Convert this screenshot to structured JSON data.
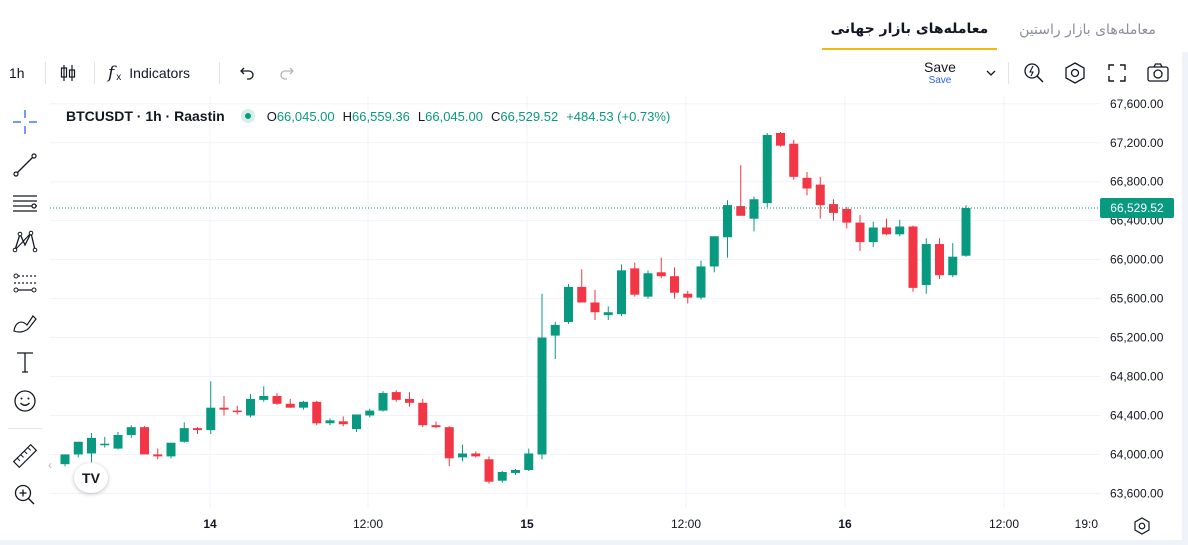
{
  "tabs": [
    {
      "label": "معامله‌های بازار جهانی",
      "active": true
    },
    {
      "label": "معامله‌های بازار راستین",
      "active": false
    }
  ],
  "toolbar": {
    "interval": "1h",
    "indicators_label": "Indicators",
    "save_label": "Save",
    "save_sub": "Save"
  },
  "legend": {
    "symbol": "BTCUSDT · 1h · Raastin",
    "open_key": "O",
    "open": "66,045.00",
    "high_key": "H",
    "high": "66,559.36",
    "low_key": "L",
    "low": "66,045.00",
    "close_key": "C",
    "close": "66,529.52",
    "change": "+484.53 (+0.73%)"
  },
  "logo_text": "TV",
  "price_axis": {
    "ticks": [
      67600,
      67200,
      66800,
      66400,
      66000,
      65600,
      65200,
      64800,
      64400,
      64000,
      63600
    ],
    "tick_labels": [
      "67,600.00",
      "67,200.00",
      "66,800.00",
      "66,400.00",
      "66,000.00",
      "65,600.00",
      "65,200.00",
      "64,800.00",
      "64,400.00",
      "64,000.00",
      "63,600.00"
    ],
    "last_price": 66529.52,
    "last_price_label": "66,529.52"
  },
  "time_axis": {
    "labels": [
      "14",
      "12:00",
      "15",
      "12:00",
      "16",
      "12:00",
      "19:0"
    ]
  },
  "colors": {
    "up": "#089981",
    "down": "#f23645",
    "accent": "#f0b90b"
  },
  "chart_data": {
    "type": "candlestick",
    "x_unit": "hour",
    "ylim": [
      63450,
      67680
    ],
    "candles": [
      {
        "o": 63900,
        "h": 64000,
        "l": 63880,
        "c": 64000
      },
      {
        "o": 64000,
        "h": 64130,
        "l": 63970,
        "c": 64130
      },
      {
        "o": 64010,
        "h": 64220,
        "l": 63920,
        "c": 64170
      },
      {
        "o": 64100,
        "h": 64180,
        "l": 64070,
        "c": 64110
      },
      {
        "o": 64060,
        "h": 64230,
        "l": 64050,
        "c": 64200
      },
      {
        "o": 64200,
        "h": 64300,
        "l": 64170,
        "c": 64280
      },
      {
        "o": 64280,
        "h": 64290,
        "l": 64000,
        "c": 64000
      },
      {
        "o": 64000,
        "h": 64060,
        "l": 63950,
        "c": 63980
      },
      {
        "o": 63980,
        "h": 64120,
        "l": 63960,
        "c": 64120
      },
      {
        "o": 64130,
        "h": 64330,
        "l": 64120,
        "c": 64270
      },
      {
        "o": 64270,
        "h": 64280,
        "l": 64210,
        "c": 64250
      },
      {
        "o": 64250,
        "h": 64750,
        "l": 64210,
        "c": 64480
      },
      {
        "o": 64480,
        "h": 64600,
        "l": 64400,
        "c": 64460
      },
      {
        "o": 64450,
        "h": 64500,
        "l": 64410,
        "c": 64440
      },
      {
        "o": 64400,
        "h": 64620,
        "l": 64380,
        "c": 64570
      },
      {
        "o": 64560,
        "h": 64700,
        "l": 64540,
        "c": 64600
      },
      {
        "o": 64600,
        "h": 64630,
        "l": 64510,
        "c": 64520
      },
      {
        "o": 64520,
        "h": 64570,
        "l": 64480,
        "c": 64480
      },
      {
        "o": 64480,
        "h": 64550,
        "l": 64460,
        "c": 64540
      },
      {
        "o": 64540,
        "h": 64550,
        "l": 64300,
        "c": 64320
      },
      {
        "o": 64320,
        "h": 64370,
        "l": 64300,
        "c": 64350
      },
      {
        "o": 64340,
        "h": 64390,
        "l": 64290,
        "c": 64310
      },
      {
        "o": 64260,
        "h": 64390,
        "l": 64230,
        "c": 64410
      },
      {
        "o": 64400,
        "h": 64470,
        "l": 64380,
        "c": 64450
      },
      {
        "o": 64450,
        "h": 64650,
        "l": 64440,
        "c": 64630
      },
      {
        "o": 64640,
        "h": 64660,
        "l": 64540,
        "c": 64560
      },
      {
        "o": 64570,
        "h": 64640,
        "l": 64490,
        "c": 64530
      },
      {
        "o": 64530,
        "h": 64570,
        "l": 64280,
        "c": 64300
      },
      {
        "o": 64300,
        "h": 64340,
        "l": 64270,
        "c": 64280
      },
      {
        "o": 64280,
        "h": 64290,
        "l": 63880,
        "c": 63960
      },
      {
        "o": 63970,
        "h": 64100,
        "l": 63930,
        "c": 64010
      },
      {
        "o": 64010,
        "h": 64030,
        "l": 63970,
        "c": 63980
      },
      {
        "o": 63950,
        "h": 63980,
        "l": 63700,
        "c": 63720
      },
      {
        "o": 63730,
        "h": 63830,
        "l": 63710,
        "c": 63820
      },
      {
        "o": 63810,
        "h": 63850,
        "l": 63790,
        "c": 63840
      },
      {
        "o": 63840,
        "h": 64060,
        "l": 63830,
        "c": 64010
      },
      {
        "o": 64000,
        "h": 65650,
        "l": 63950,
        "c": 65200
      },
      {
        "o": 65220,
        "h": 65360,
        "l": 64980,
        "c": 65330
      },
      {
        "o": 65360,
        "h": 65750,
        "l": 65340,
        "c": 65720
      },
      {
        "o": 65720,
        "h": 65900,
        "l": 65570,
        "c": 65560
      },
      {
        "o": 65560,
        "h": 65690,
        "l": 65380,
        "c": 65460
      },
      {
        "o": 65430,
        "h": 65520,
        "l": 65380,
        "c": 65460
      },
      {
        "o": 65440,
        "h": 65950,
        "l": 65420,
        "c": 65890
      },
      {
        "o": 65910,
        "h": 65970,
        "l": 65620,
        "c": 65640
      },
      {
        "o": 65620,
        "h": 65890,
        "l": 65600,
        "c": 65860
      },
      {
        "o": 65870,
        "h": 66020,
        "l": 65810,
        "c": 65830
      },
      {
        "o": 65830,
        "h": 65920,
        "l": 65600,
        "c": 65660
      },
      {
        "o": 65650,
        "h": 65680,
        "l": 65550,
        "c": 65610
      },
      {
        "o": 65610,
        "h": 65990,
        "l": 65590,
        "c": 65930
      },
      {
        "o": 65930,
        "h": 66200,
        "l": 65870,
        "c": 66240
      },
      {
        "o": 66230,
        "h": 66610,
        "l": 66020,
        "c": 66560
      },
      {
        "o": 66550,
        "h": 66970,
        "l": 66460,
        "c": 66450
      },
      {
        "o": 66420,
        "h": 66650,
        "l": 66290,
        "c": 66620
      },
      {
        "o": 66580,
        "h": 67300,
        "l": 66540,
        "c": 67280
      },
      {
        "o": 67300,
        "h": 67310,
        "l": 67160,
        "c": 67170
      },
      {
        "o": 67190,
        "h": 67230,
        "l": 66820,
        "c": 66850
      },
      {
        "o": 66840,
        "h": 66900,
        "l": 66660,
        "c": 66730
      },
      {
        "o": 66770,
        "h": 66850,
        "l": 66420,
        "c": 66560
      },
      {
        "o": 66570,
        "h": 66620,
        "l": 66400,
        "c": 66480
      },
      {
        "o": 66520,
        "h": 66540,
        "l": 66320,
        "c": 66380
      },
      {
        "o": 66380,
        "h": 66460,
        "l": 66090,
        "c": 66180
      },
      {
        "o": 66180,
        "h": 66390,
        "l": 66130,
        "c": 66330
      },
      {
        "o": 66330,
        "h": 66420,
        "l": 66250,
        "c": 66260
      },
      {
        "o": 66260,
        "h": 66410,
        "l": 66240,
        "c": 66340
      },
      {
        "o": 66340,
        "h": 66350,
        "l": 65670,
        "c": 65710
      },
      {
        "o": 65740,
        "h": 66220,
        "l": 65650,
        "c": 66160
      },
      {
        "o": 66160,
        "h": 66220,
        "l": 65800,
        "c": 65840
      },
      {
        "o": 65840,
        "h": 66170,
        "l": 65820,
        "c": 66030
      },
      {
        "o": 66040,
        "h": 66560,
        "l": 66030,
        "c": 66530
      }
    ]
  }
}
